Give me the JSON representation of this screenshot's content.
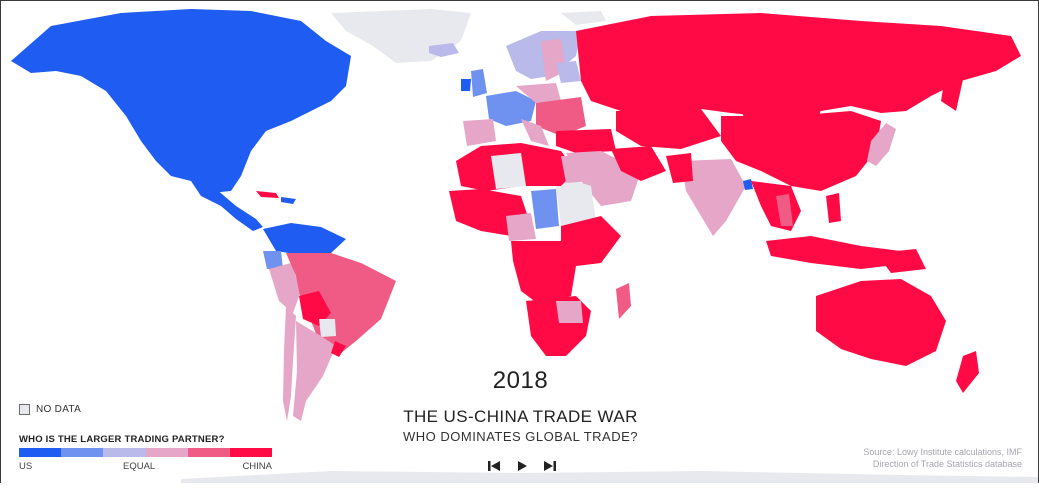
{
  "map": {
    "year": "2018",
    "title": "THE US-CHINA TRADE WAR",
    "subtitle": "WHO DOMINATES GLOBAL TRADE?",
    "source_line1": "Source: Lowy Institute calculations, IMF",
    "source_line2": "Direction of Trade Statistics database"
  },
  "legend": {
    "no_data_label": "NO DATA",
    "title": "WHO IS THE LARGER TRADING PARTNER?",
    "label_us": "US",
    "label_equal": "EQUAL",
    "label_china": "CHINA",
    "scale_colors": [
      "#1f5cf2",
      "#6f92f0",
      "#b9b9ea",
      "#e5a6c8",
      "#f05b86",
      "#ff0a45"
    ]
  },
  "colors": {
    "us_strong": "#1f5cf2",
    "us_mid": "#6f92f0",
    "equal_us": "#b9b9ea",
    "equal_china": "#e5a6c8",
    "china_mid": "#f05b86",
    "china_strong": "#ff0a45",
    "no_data": "#e8e9ee"
  },
  "controls": {
    "prev_icon": "skip-back-icon",
    "play_icon": "play-icon",
    "next_icon": "skip-forward-icon"
  }
}
